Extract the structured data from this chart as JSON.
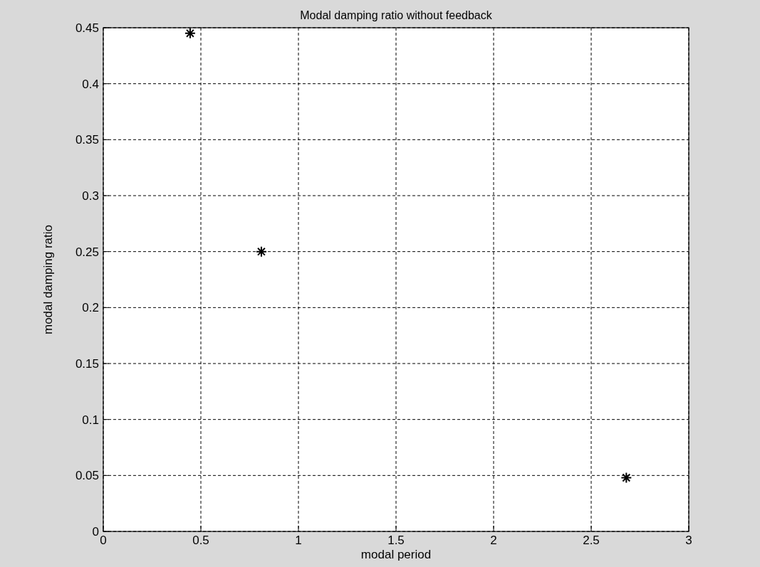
{
  "chart_data": {
    "type": "scatter",
    "title": "Modal damping ratio without feedback",
    "xlabel": "modal period",
    "ylabel": "modal damping ratio",
    "x": [
      0.445,
      0.81,
      2.68
    ],
    "series": [
      {
        "color": "#000000",
        "values": [
          0.445,
          0.25,
          0.048
        ]
      }
    ],
    "xlim": [
      0,
      3
    ],
    "xticks": [
      0,
      0.5,
      1,
      1.5,
      2,
      2.5,
      3
    ],
    "ylim": [
      0,
      0.45
    ],
    "yticks": [
      0,
      0.05,
      0.1,
      0.15,
      0.2,
      0.25,
      0.3,
      0.35,
      0.4,
      0.45
    ],
    "grid": true,
    "marker": "cross"
  }
}
